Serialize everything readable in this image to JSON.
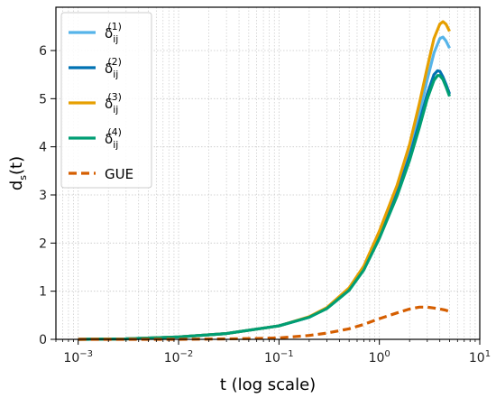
{
  "chart_data": {
    "type": "line",
    "xlabel": "t (log scale)",
    "ylabel": "d",
    "ylabel_sub": "s",
    "ylabel_suffix": "(t)",
    "xscale": "log",
    "xlim": [
      0.0006,
      10
    ],
    "ylim": [
      0,
      6.9
    ],
    "grid": true,
    "legend_position": "top-left",
    "x_ticks": [
      {
        "value": 0.001,
        "base": "10",
        "exp": "−3"
      },
      {
        "value": 0.01,
        "base": "10",
        "exp": "−2"
      },
      {
        "value": 0.1,
        "base": "10",
        "exp": "−1"
      },
      {
        "value": 1,
        "base": "10",
        "exp": "0"
      },
      {
        "value": 10,
        "base": "10",
        "exp": "1"
      }
    ],
    "y_ticks": [
      "0",
      "1",
      "2",
      "3",
      "4",
      "5",
      "6"
    ],
    "series": [
      {
        "name": "δ",
        "sub": "ij",
        "sup": "(1)",
        "color": "#56b4e9",
        "dash": "solid",
        "x": [
          0.001,
          0.003,
          0.01,
          0.03,
          0.1,
          0.2,
          0.3,
          0.5,
          0.7,
          1.0,
          1.5,
          2.0,
          2.5,
          3.0,
          3.5,
          4.0,
          4.3,
          4.6,
          5.0
        ],
        "y": [
          0.0,
          0.01,
          0.05,
          0.12,
          0.28,
          0.46,
          0.65,
          1.05,
          1.5,
          2.2,
          3.1,
          3.9,
          4.7,
          5.4,
          5.95,
          6.25,
          6.28,
          6.2,
          6.05
        ]
      },
      {
        "name": "δ",
        "sub": "ij",
        "sup": "(2)",
        "color": "#0072b2",
        "dash": "solid",
        "x": [
          0.001,
          0.003,
          0.01,
          0.03,
          0.1,
          0.2,
          0.3,
          0.5,
          0.7,
          1.0,
          1.5,
          2.0,
          2.5,
          3.0,
          3.5,
          3.8,
          4.0,
          4.3,
          4.6,
          5.0
        ],
        "y": [
          0.0,
          0.01,
          0.05,
          0.12,
          0.28,
          0.46,
          0.65,
          1.05,
          1.48,
          2.15,
          3.05,
          3.8,
          4.5,
          5.1,
          5.5,
          5.58,
          5.57,
          5.45,
          5.3,
          5.1
        ]
      },
      {
        "name": "δ",
        "sub": "ij",
        "sup": "(3)",
        "color": "#e69f00",
        "dash": "solid",
        "x": [
          0.001,
          0.003,
          0.01,
          0.03,
          0.1,
          0.2,
          0.3,
          0.5,
          0.7,
          1.0,
          1.5,
          2.0,
          2.5,
          3.0,
          3.5,
          4.0,
          4.3,
          4.6,
          5.0
        ],
        "y": [
          0.0,
          0.01,
          0.05,
          0.12,
          0.28,
          0.47,
          0.66,
          1.07,
          1.52,
          2.25,
          3.2,
          4.05,
          4.9,
          5.65,
          6.25,
          6.55,
          6.6,
          6.55,
          6.4
        ]
      },
      {
        "name": "δ",
        "sub": "ij",
        "sup": "(4)",
        "color": "#009e73",
        "dash": "solid",
        "x": [
          0.001,
          0.003,
          0.01,
          0.03,
          0.1,
          0.2,
          0.3,
          0.5,
          0.7,
          1.0,
          1.5,
          2.0,
          2.5,
          3.0,
          3.5,
          3.8,
          4.0,
          4.3,
          4.6,
          5.0
        ],
        "y": [
          0.0,
          0.01,
          0.05,
          0.12,
          0.28,
          0.46,
          0.64,
          1.02,
          1.44,
          2.1,
          2.98,
          3.72,
          4.4,
          5.0,
          5.38,
          5.48,
          5.48,
          5.4,
          5.25,
          5.05
        ]
      },
      {
        "name": "GUE",
        "color": "#d55e00",
        "dash": "dashed",
        "x": [
          0.001,
          0.003,
          0.01,
          0.03,
          0.07,
          0.1,
          0.2,
          0.3,
          0.5,
          0.7,
          1.0,
          1.5,
          2.0,
          2.5,
          3.0,
          3.5,
          4.0,
          4.5,
          5.0
        ],
        "y": [
          0.0,
          0.0,
          0.0,
          0.01,
          0.02,
          0.03,
          0.08,
          0.13,
          0.22,
          0.31,
          0.43,
          0.55,
          0.63,
          0.67,
          0.67,
          0.65,
          0.63,
          0.61,
          0.58
        ]
      }
    ]
  }
}
